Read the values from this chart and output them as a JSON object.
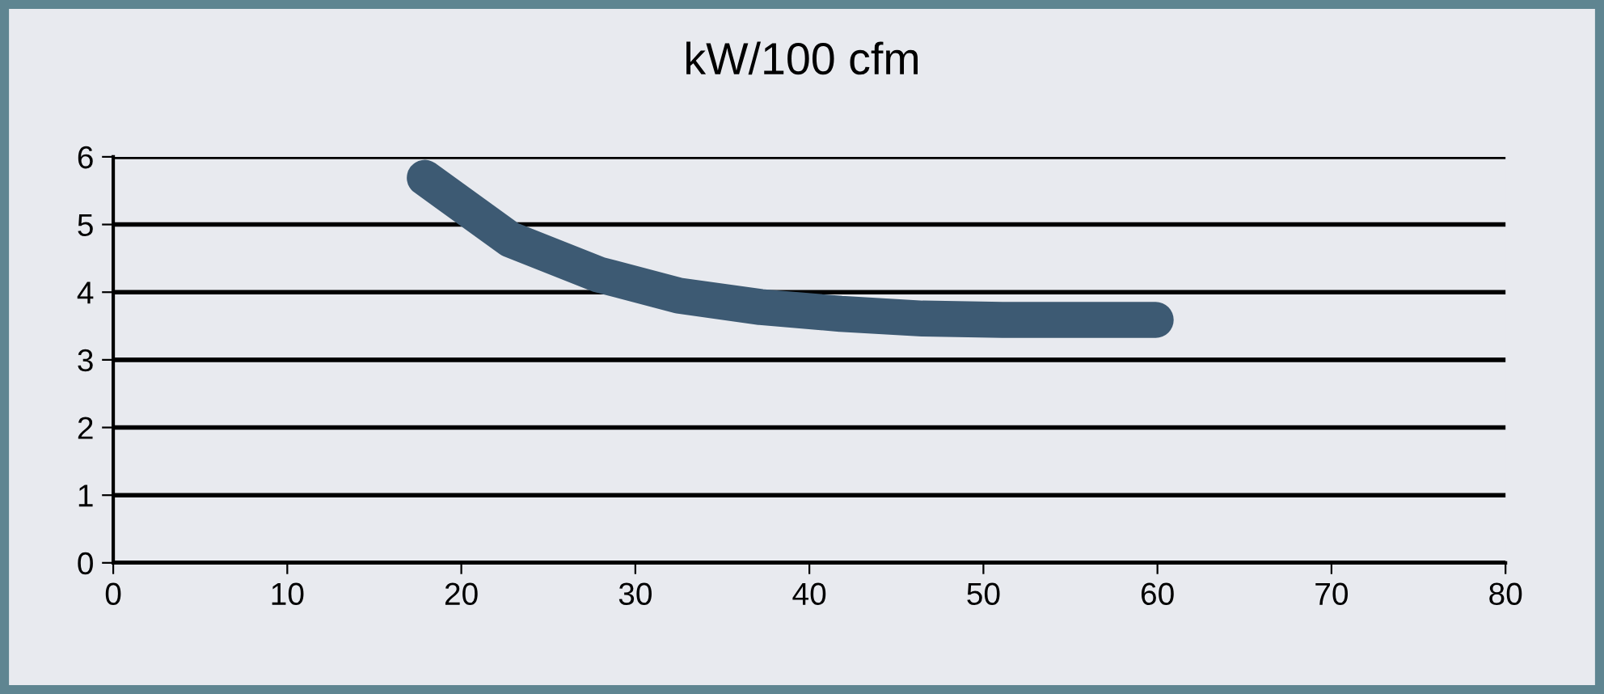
{
  "chart_data": {
    "type": "line",
    "title": "kW/100 cfm",
    "x": [
      17.9,
      22.8,
      27.9,
      32.5,
      37.2,
      41.8,
      46.5,
      51.1,
      55.5,
      59.9
    ],
    "series": [
      {
        "color": "#3d5a73",
        "values": [
          5.69,
          4.78,
          4.26,
          3.95,
          3.78,
          3.68,
          3.61,
          3.59,
          3.59,
          3.59
        ]
      }
    ],
    "xlim": [
      0,
      80
    ],
    "ylim": [
      0,
      6
    ],
    "xticks": [
      0,
      10,
      20,
      30,
      40,
      50,
      60,
      70,
      80
    ],
    "yticks": [
      0,
      1,
      2,
      3,
      4,
      5,
      6
    ],
    "grid": "y",
    "legend": false,
    "line_style": "solid"
  }
}
